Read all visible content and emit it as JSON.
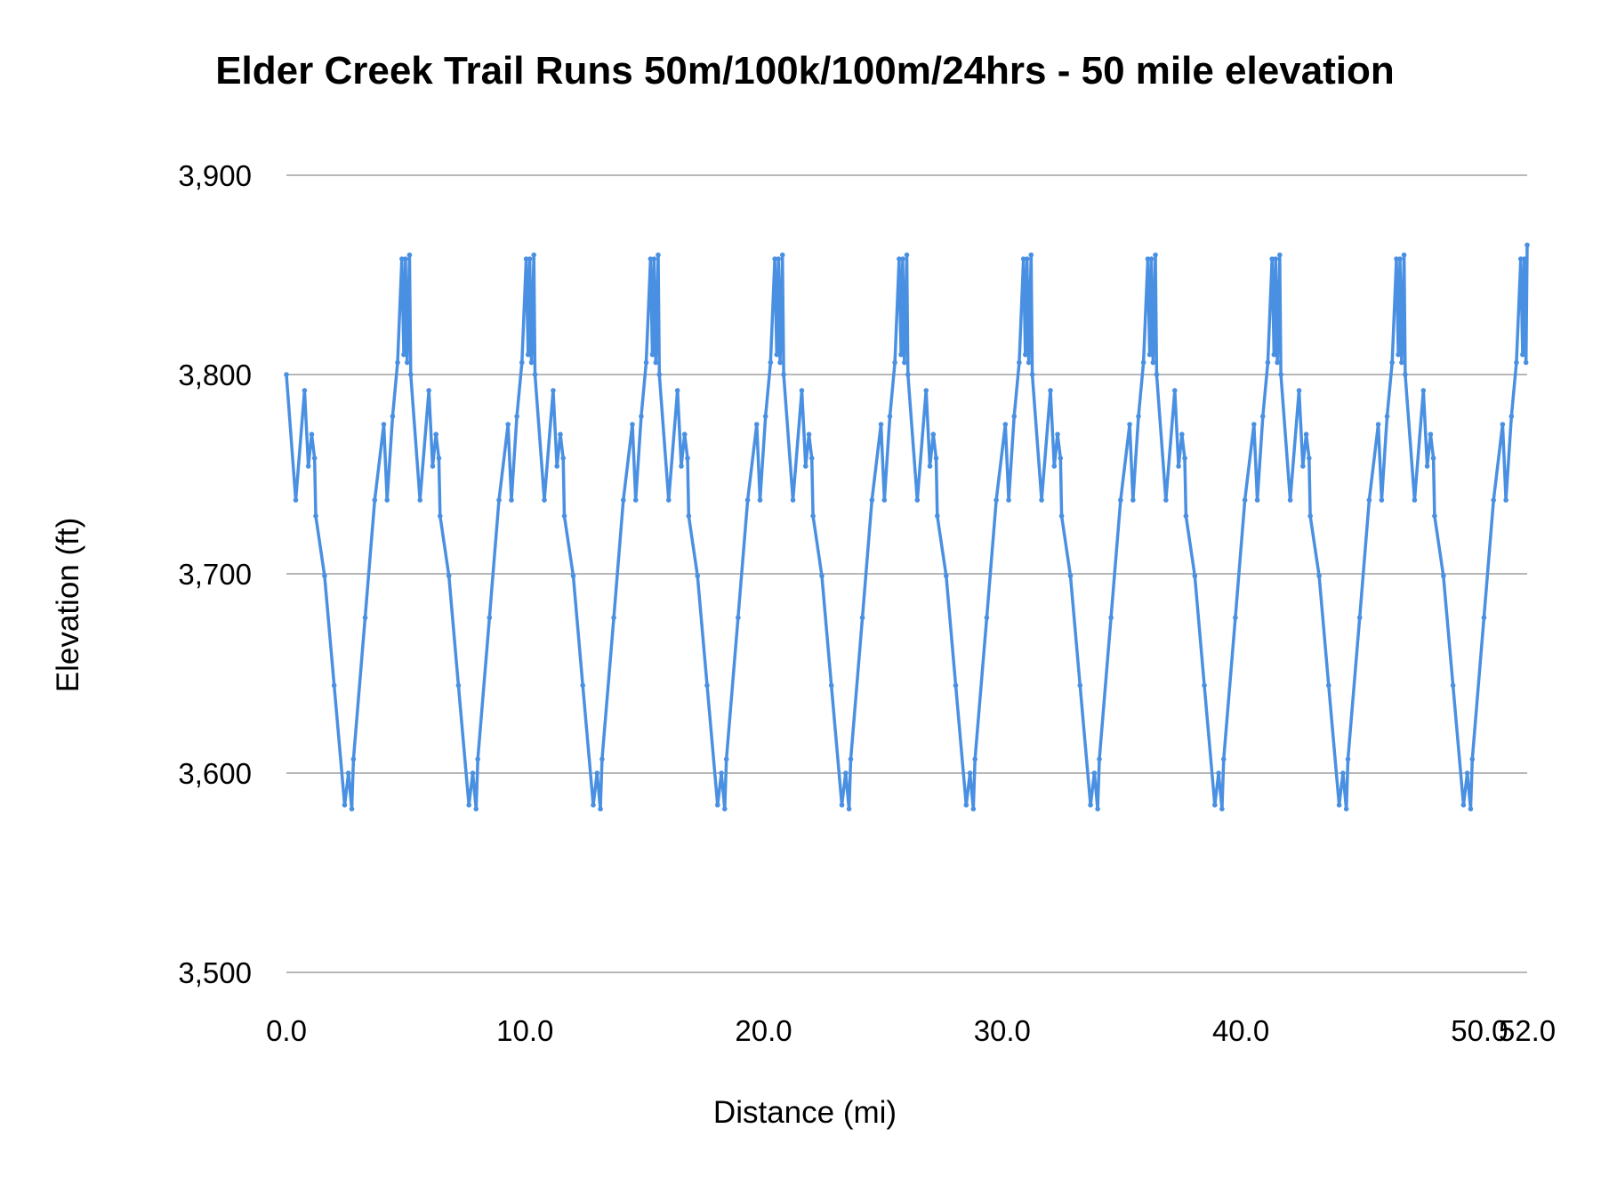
{
  "chart_data": {
    "type": "line",
    "title": "Elder Creek Trail Runs 50m/100k/100m/24hrs - 50 mile elevation",
    "xlabel": "Distance (mi)",
    "ylabel": "Elevation (ft)",
    "xlim": [
      0,
      52
    ],
    "ylim": [
      3500,
      3900
    ],
    "x_ticks": [
      0,
      10,
      20,
      30,
      40,
      50,
      52
    ],
    "x_tick_labels": [
      "0.0",
      "10.0",
      "20.0",
      "30.0",
      "40.0",
      "50.0",
      "52.0"
    ],
    "y_ticks": [
      3500,
      3600,
      3700,
      3800,
      3900
    ],
    "y_tick_labels": [
      "3,500",
      "3,600",
      "3,700",
      "3,800",
      "3,900"
    ],
    "grid": "horizontal",
    "legend": "none",
    "color": "#4a90e2",
    "series": [
      {
        "x": [
          0,
          0.39,
          0.76,
          0.92,
          1.06,
          1.18,
          1.23,
          1.6,
          2.0,
          2.44,
          2.6,
          2.74,
          2.81,
          3.3,
          3.7,
          4.08,
          4.22,
          4.45,
          4.66,
          4.84,
          4.92,
          4.99,
          5.06,
          5.16,
          5.21,
          5.6,
          5.97,
          6.13,
          6.27,
          6.39,
          6.44,
          6.81,
          7.21,
          7.65,
          7.81,
          7.95,
          8.02,
          8.51,
          8.91,
          9.29,
          9.43,
          9.66,
          9.87,
          10.05,
          10.13,
          10.2,
          10.27,
          10.37,
          10.42,
          10.81,
          11.18,
          11.34,
          11.48,
          11.6,
          11.65,
          12.02,
          12.42,
          12.86,
          13.02,
          13.16,
          13.23,
          13.72,
          14.12,
          14.5,
          14.64,
          14.87,
          15.08,
          15.26,
          15.34,
          15.41,
          15.48,
          15.58,
          15.63,
          16.02,
          16.39,
          16.55,
          16.69,
          16.81,
          16.86,
          17.23,
          17.63,
          18.07,
          18.23,
          18.37,
          18.44,
          18.93,
          19.33,
          19.71,
          19.85,
          20.08,
          20.29,
          20.47,
          20.55,
          20.62,
          20.69,
          20.79,
          20.84,
          21.23,
          21.6,
          21.76,
          21.9,
          22.02,
          22.07,
          22.44,
          22.84,
          23.28,
          23.44,
          23.58,
          23.65,
          24.14,
          24.54,
          24.92,
          25.06,
          25.29,
          25.5,
          25.68,
          25.76,
          25.83,
          25.9,
          26.0,
          26.05,
          26.44,
          26.81,
          26.97,
          27.11,
          27.23,
          27.28,
          27.65,
          28.05,
          28.49,
          28.65,
          28.79,
          28.86,
          29.35,
          29.75,
          30.13,
          30.27,
          30.5,
          30.71,
          30.89,
          30.97,
          31.04,
          31.11,
          31.21,
          31.26,
          31.65,
          32.02,
          32.18,
          32.32,
          32.44,
          32.49,
          32.86,
          33.26,
          33.7,
          33.86,
          34.0,
          34.07,
          34.56,
          34.96,
          35.34,
          35.48,
          35.71,
          35.92,
          36.1,
          36.18,
          36.25,
          36.32,
          36.42,
          36.47,
          36.86,
          37.23,
          37.39,
          37.53,
          37.65,
          37.7,
          38.07,
          38.47,
          38.91,
          39.07,
          39.21,
          39.28,
          39.77,
          40.17,
          40.55,
          40.69,
          40.92,
          41.13,
          41.31,
          41.39,
          41.46,
          41.53,
          41.63,
          41.68,
          42.07,
          42.44,
          42.6,
          42.74,
          42.86,
          42.91,
          43.28,
          43.68,
          44.12,
          44.28,
          44.42,
          44.49,
          44.98,
          45.38,
          45.76,
          45.9,
          46.13,
          46.34,
          46.52,
          46.6,
          46.67,
          46.74,
          46.84,
          46.89,
          47.28,
          47.65,
          47.81,
          47.95,
          48.07,
          48.12,
          48.49,
          48.89,
          49.33,
          49.49,
          49.63,
          49.7,
          50.19,
          50.59,
          50.97,
          51.11,
          51.34,
          51.55,
          51.73,
          51.81,
          51.88,
          51.95,
          52.0
        ],
        "y": [
          3800,
          3737,
          3792,
          3754,
          3770,
          3758,
          3729,
          3699,
          3644,
          3584,
          3600,
          3582,
          3607,
          3678,
          3737,
          3775,
          3737,
          3779,
          3806,
          3858,
          3810,
          3858,
          3806,
          3860,
          3800,
          3737,
          3792,
          3754,
          3770,
          3758,
          3729,
          3699,
          3644,
          3584,
          3600,
          3582,
          3607,
          3678,
          3737,
          3775,
          3737,
          3779,
          3806,
          3858,
          3810,
          3858,
          3806,
          3860,
          3800,
          3737,
          3792,
          3754,
          3770,
          3758,
          3729,
          3699,
          3644,
          3584,
          3600,
          3582,
          3607,
          3678,
          3737,
          3775,
          3737,
          3779,
          3806,
          3858,
          3810,
          3858,
          3806,
          3860,
          3800,
          3737,
          3792,
          3754,
          3770,
          3758,
          3729,
          3699,
          3644,
          3584,
          3600,
          3582,
          3607,
          3678,
          3737,
          3775,
          3737,
          3779,
          3806,
          3858,
          3810,
          3858,
          3806,
          3860,
          3800,
          3737,
          3792,
          3754,
          3770,
          3758,
          3729,
          3699,
          3644,
          3584,
          3600,
          3582,
          3607,
          3678,
          3737,
          3775,
          3737,
          3779,
          3806,
          3858,
          3810,
          3858,
          3806,
          3860,
          3800,
          3737,
          3792,
          3754,
          3770,
          3758,
          3729,
          3699,
          3644,
          3584,
          3600,
          3582,
          3607,
          3678,
          3737,
          3775,
          3737,
          3779,
          3806,
          3858,
          3810,
          3858,
          3806,
          3860,
          3800,
          3737,
          3792,
          3754,
          3770,
          3758,
          3729,
          3699,
          3644,
          3584,
          3600,
          3582,
          3607,
          3678,
          3737,
          3775,
          3737,
          3779,
          3806,
          3858,
          3810,
          3858,
          3806,
          3860,
          3800,
          3737,
          3792,
          3754,
          3770,
          3758,
          3729,
          3699,
          3644,
          3584,
          3600,
          3582,
          3607,
          3678,
          3737,
          3775,
          3737,
          3779,
          3806,
          3858,
          3810,
          3858,
          3806,
          3860,
          3800,
          3737,
          3792,
          3754,
          3770,
          3758,
          3729,
          3699,
          3644,
          3584,
          3600,
          3582,
          3607,
          3678,
          3737,
          3775,
          3737,
          3779,
          3806,
          3858,
          3810,
          3858,
          3806,
          3860,
          3800,
          3737,
          3792,
          3754,
          3770,
          3758,
          3729,
          3699,
          3644,
          3584,
          3600,
          3582,
          3607,
          3678,
          3737,
          3775,
          3737,
          3779,
          3806,
          3858,
          3810,
          3858,
          3806,
          3865
        ]
      }
    ]
  }
}
